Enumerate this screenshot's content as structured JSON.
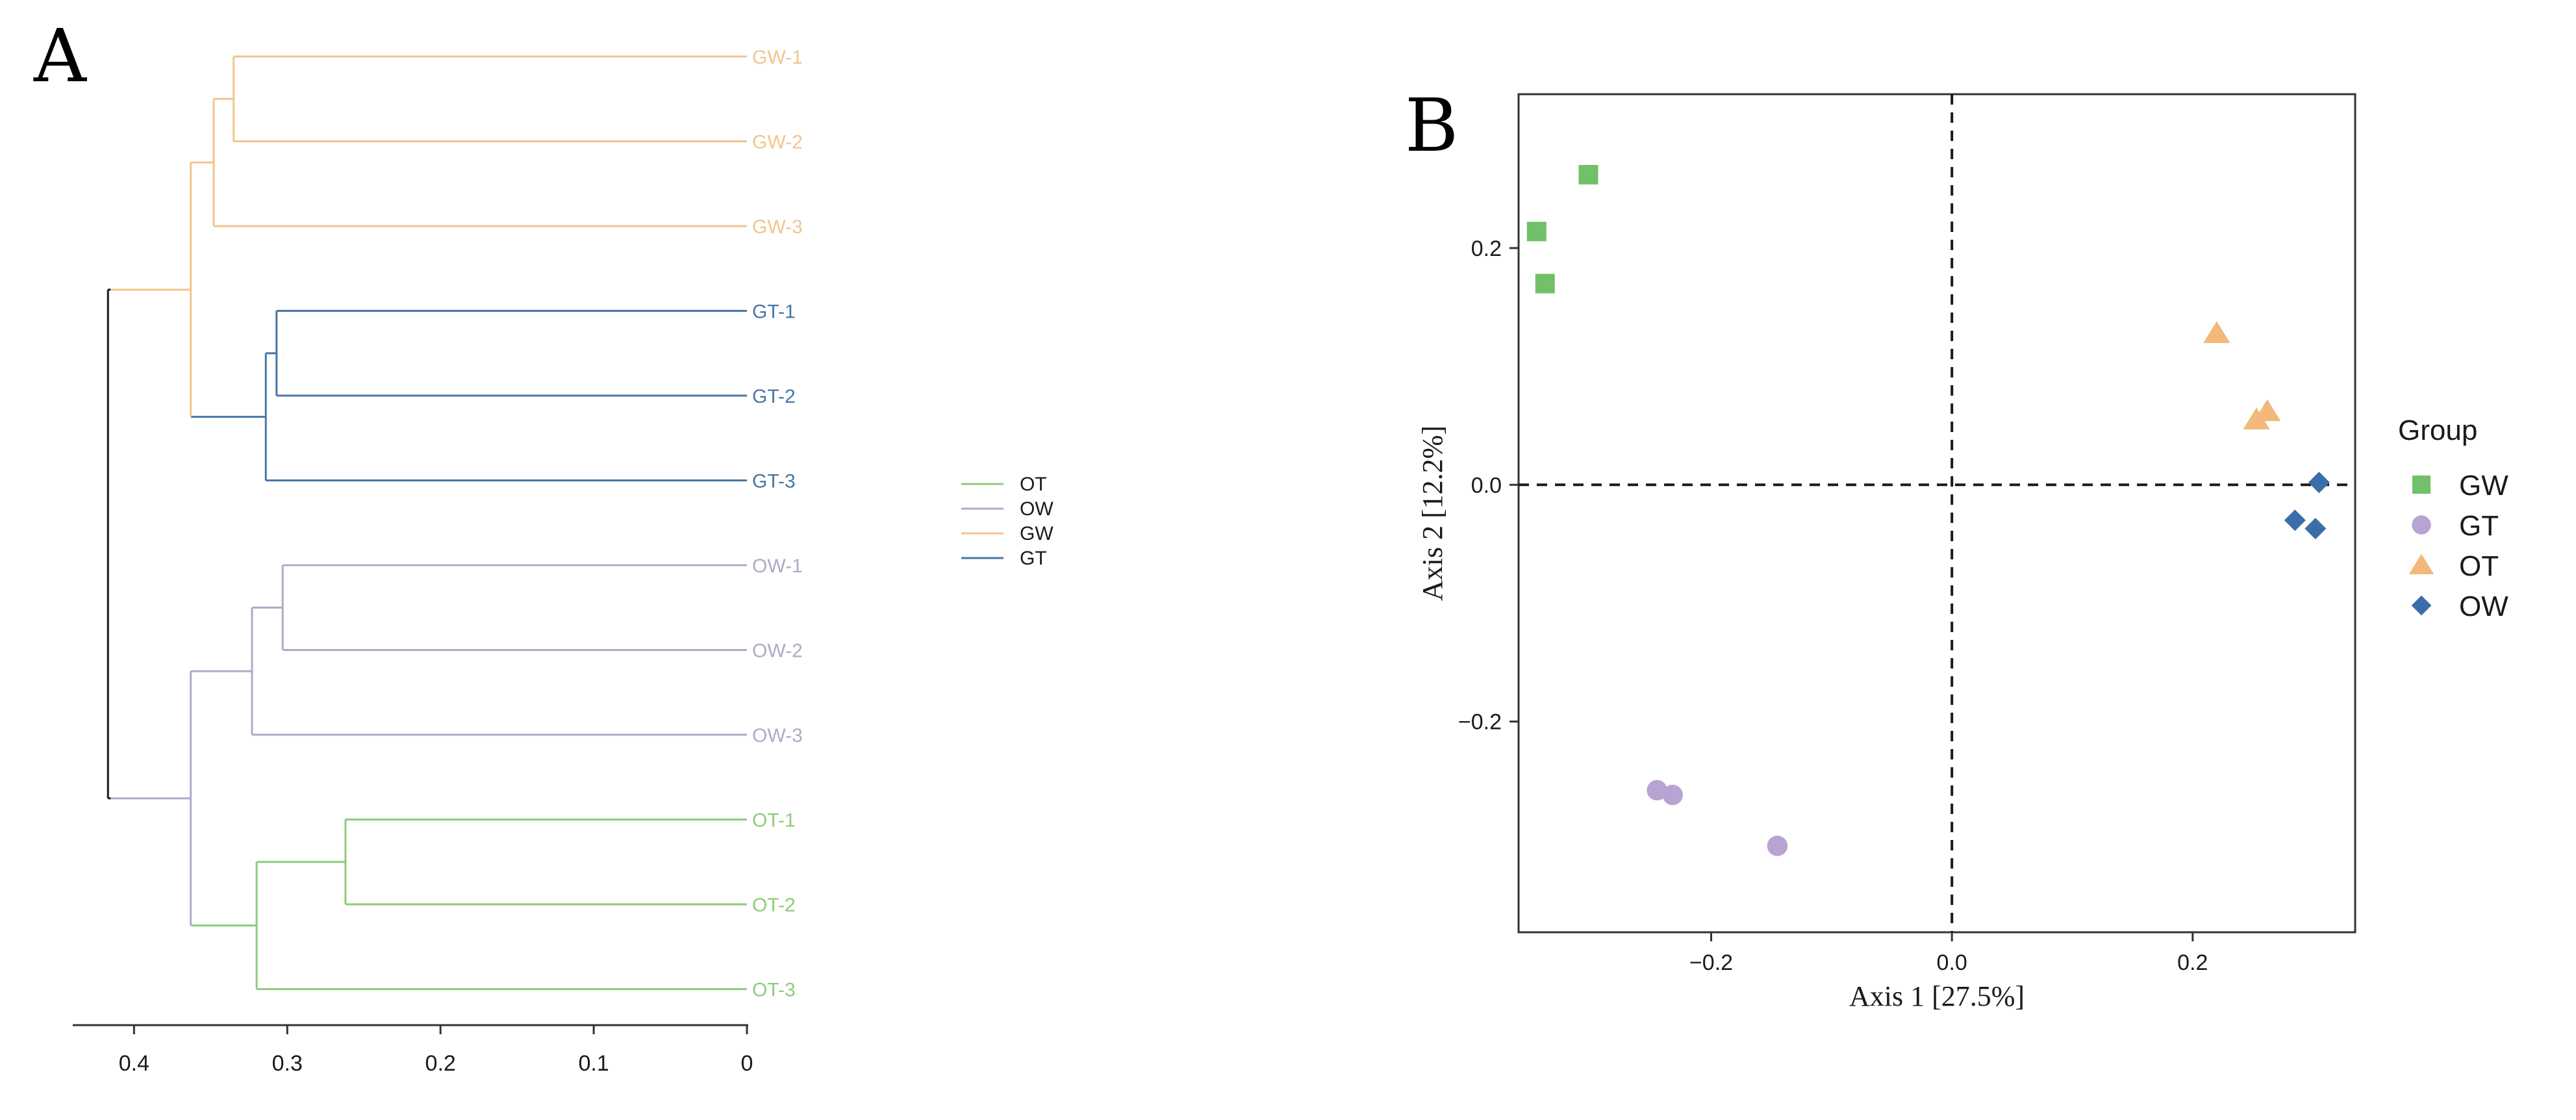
{
  "colors": {
    "OT": "#8ccc7c",
    "OW": "#b0a9c6",
    "GW": "#f2c58d",
    "GT": "#4677a6",
    "root": "#1a1a1a",
    "scatter_GW": "#72c06a",
    "scatter_GT": "#b7a4d3",
    "scatter_OT": "#f2b97a",
    "scatter_OW": "#3a6ea8"
  },
  "chart_data": [
    {
      "type": "dendrogram",
      "panel_label": "A",
      "leaves": [
        {
          "label": "GW-1",
          "group": "GW"
        },
        {
          "label": "GW-2",
          "group": "GW"
        },
        {
          "label": "GW-3",
          "group": "GW"
        },
        {
          "label": "GT-1",
          "group": "GT"
        },
        {
          "label": "GT-2",
          "group": "GT"
        },
        {
          "label": "GT-3",
          "group": "GT"
        },
        {
          "label": "OW-1",
          "group": "OW"
        },
        {
          "label": "OW-2",
          "group": "OW"
        },
        {
          "label": "OW-3",
          "group": "OW"
        },
        {
          "label": "OT-1",
          "group": "OT"
        },
        {
          "label": "OT-2",
          "group": "OT"
        },
        {
          "label": "OT-3",
          "group": "OT"
        }
      ],
      "merges": [
        {
          "id": "gw12",
          "children": [
            "GW-1",
            "GW-2"
          ],
          "height": 0.335,
          "group": "GW"
        },
        {
          "id": "gw123",
          "children": [
            "gw12",
            "GW-3"
          ],
          "height": 0.348,
          "group": "GW"
        },
        {
          "id": "gt12",
          "children": [
            "GT-1",
            "GT-2"
          ],
          "height": 0.307,
          "group": "GT"
        },
        {
          "id": "gt123",
          "children": [
            "gt12",
            "GT-3"
          ],
          "height": 0.314,
          "group": "GT"
        },
        {
          "id": "g",
          "children": [
            "gw123",
            "gt123"
          ],
          "height": 0.363,
          "group": "GW"
        },
        {
          "id": "ow12",
          "children": [
            "OW-1",
            "OW-2"
          ],
          "height": 0.303,
          "group": "OW"
        },
        {
          "id": "ow123",
          "children": [
            "ow12",
            "OW-3"
          ],
          "height": 0.323,
          "group": "OW"
        },
        {
          "id": "ot12",
          "children": [
            "OT-1",
            "OT-2"
          ],
          "height": 0.262,
          "group": "OT"
        },
        {
          "id": "ot123",
          "children": [
            "ot12",
            "OT-3"
          ],
          "height": 0.32,
          "group": "OT"
        },
        {
          "id": "o",
          "children": [
            "ow123",
            "ot123"
          ],
          "height": 0.363,
          "group": "OW"
        },
        {
          "id": "root",
          "children": [
            "g",
            "o"
          ],
          "height": 0.417,
          "group": "root"
        }
      ],
      "root_lower_group": "OT",
      "x_ticks": [
        0.4,
        0.3,
        0.2,
        0.1,
        0
      ],
      "x_tick_labels": [
        "0.4",
        "0.3",
        "0.2",
        "0.1",
        "0"
      ],
      "xlim": [
        0.44,
        0
      ],
      "legend": [
        {
          "label": "OT",
          "group": "OT"
        },
        {
          "label": "OW",
          "group": "OW"
        },
        {
          "label": "GW",
          "group": "GW"
        },
        {
          "label": "GT",
          "group": "GT"
        }
      ]
    },
    {
      "type": "scatter",
      "panel_label": "B",
      "xlabel": "Axis 1 [27.5%]",
      "ylabel": "Axis 2 [12.2%]",
      "xlim": [
        -0.36,
        0.335
      ],
      "ylim": [
        -0.378,
        0.33
      ],
      "x_ticks": [
        -0.2,
        0.0,
        0.2
      ],
      "x_tick_labels": [
        "−0.2",
        "0.0",
        "0.2"
      ],
      "y_ticks": [
        -0.2,
        0.0,
        0.2
      ],
      "y_tick_labels": [
        "−0.2",
        "0.0",
        "0.2"
      ],
      "legend_title": "Group",
      "series": [
        {
          "name": "GW",
          "marker": "square",
          "points": [
            [
              -0.302,
              0.262
            ],
            [
              -0.345,
              0.214
            ],
            [
              -0.338,
              0.17
            ]
          ]
        },
        {
          "name": "GT",
          "marker": "circle",
          "points": [
            [
              -0.245,
              -0.258
            ],
            [
              -0.232,
              -0.262
            ],
            [
              -0.145,
              -0.305
            ]
          ]
        },
        {
          "name": "OT",
          "marker": "triangle",
          "points": [
            [
              0.22,
              0.128
            ],
            [
              0.262,
              0.062
            ],
            [
              0.253,
              0.055
            ]
          ]
        },
        {
          "name": "OW",
          "marker": "diamond",
          "points": [
            [
              0.305,
              0.002
            ],
            [
              0.285,
              -0.03
            ],
            [
              0.302,
              -0.037
            ]
          ]
        }
      ]
    }
  ]
}
